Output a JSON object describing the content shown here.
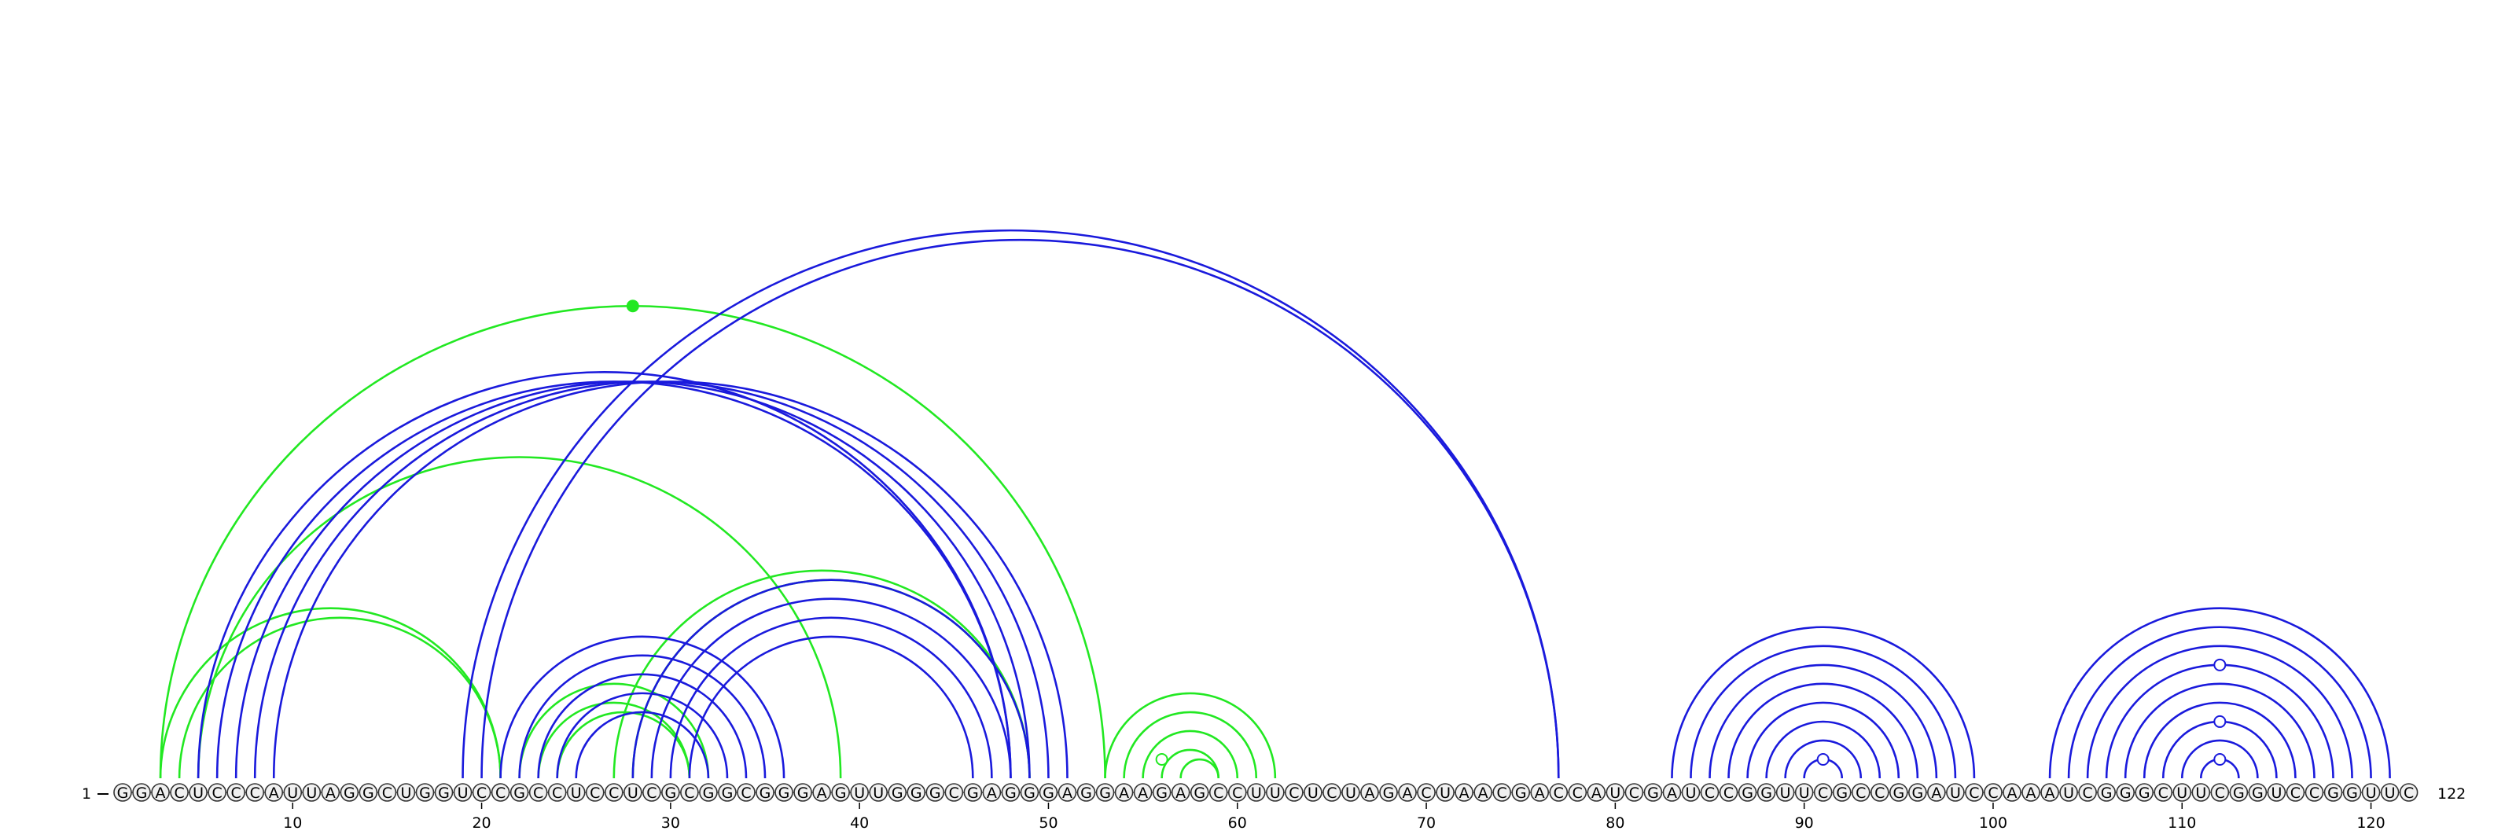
{
  "chart_data": {
    "type": "arc-diagram",
    "sequence": "GGACUCCCAUUAGGCUGGUCCGCCUCCUCGCGGCGGGAGUUGGGCGAGGGAGGAAGAGCCUUCUCUAGACUAACGACCAUCGAUCCGGUUCGCCGGAUCCAAAUCGGGCUUCGGUCCGGUUC",
    "start_label": "1",
    "end_label": "122",
    "ticks": [
      10,
      20,
      30,
      40,
      50,
      60,
      70,
      80,
      90,
      100,
      110,
      120
    ],
    "colors": {
      "structure_a": "#1a1adc",
      "structure_b": "#22e822",
      "nucleotide_fill": "#f0f0f0",
      "nucleotide_stroke": "#333333"
    },
    "pairs_a": [
      [
        5,
        48
      ],
      [
        6,
        48
      ],
      [
        7,
        49
      ],
      [
        8,
        50
      ],
      [
        9,
        51
      ],
      [
        19,
        77
      ],
      [
        20,
        77
      ],
      [
        21,
        36
      ],
      [
        22,
        35
      ],
      [
        23,
        34
      ],
      [
        24,
        33
      ],
      [
        25,
        32
      ],
      [
        28,
        49
      ],
      [
        29,
        48
      ],
      [
        30,
        47
      ],
      [
        31,
        46
      ],
      [
        83,
        99
      ],
      [
        84,
        98
      ],
      [
        85,
        97
      ],
      [
        86,
        96
      ],
      [
        87,
        95
      ],
      [
        88,
        94
      ],
      [
        89,
        93
      ],
      [
        90,
        92
      ],
      [
        103,
        121
      ],
      [
        104,
        120
      ],
      [
        105,
        119
      ],
      [
        106,
        118
      ],
      [
        107,
        117
      ],
      [
        108,
        116
      ],
      [
        109,
        115
      ],
      [
        110,
        114
      ],
      [
        111,
        113
      ]
    ],
    "pairs_b": [
      [
        3,
        53
      ],
      [
        3,
        21
      ],
      [
        4,
        21
      ],
      [
        5,
        39
      ],
      [
        22,
        32
      ],
      [
        23,
        31
      ],
      [
        24,
        31
      ],
      [
        27,
        49
      ],
      [
        28,
        49
      ],
      [
        53,
        62
      ],
      [
        54,
        61
      ],
      [
        55,
        60
      ],
      [
        56,
        59
      ],
      [
        57,
        59
      ]
    ],
    "markers": [
      {
        "structure": "b",
        "between": [
          3,
          53
        ],
        "filled": true
      },
      {
        "structure": "b",
        "between": [
          55,
          57
        ],
        "filled": false
      },
      {
        "structure": "a",
        "between": [
          90,
          92
        ],
        "filled": false
      },
      {
        "structure": "a",
        "between": [
          111,
          113
        ],
        "filled": false
      },
      {
        "structure": "a",
        "between": [
          109,
          115
        ],
        "filled": false
      },
      {
        "structure": "a",
        "between": [
          106,
          118
        ],
        "filled": false
      }
    ]
  }
}
